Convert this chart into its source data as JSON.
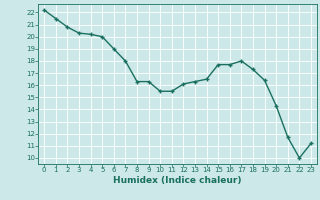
{
  "x": [
    0,
    1,
    2,
    3,
    4,
    5,
    6,
    7,
    8,
    9,
    10,
    11,
    12,
    13,
    14,
    15,
    16,
    17,
    18,
    19,
    20,
    21,
    22,
    23
  ],
  "y": [
    22.2,
    21.5,
    20.8,
    20.3,
    20.2,
    20.0,
    19.0,
    18.0,
    16.3,
    16.3,
    15.5,
    15.5,
    16.1,
    16.3,
    16.5,
    17.7,
    17.7,
    18.0,
    17.3,
    16.4,
    14.3,
    11.7,
    10.0,
    11.2
  ],
  "line_color": "#1a7060",
  "marker": "+",
  "marker_size": 3,
  "linewidth": 1.0,
  "xlabel": "Humidex (Indice chaleur)",
  "xlim": [
    -0.5,
    23.5
  ],
  "ylim": [
    9.5,
    22.7
  ],
  "yticks": [
    10,
    11,
    12,
    13,
    14,
    15,
    16,
    17,
    18,
    19,
    20,
    21,
    22
  ],
  "xticks": [
    0,
    1,
    2,
    3,
    4,
    5,
    6,
    7,
    8,
    9,
    10,
    11,
    12,
    13,
    14,
    15,
    16,
    17,
    18,
    19,
    20,
    21,
    22,
    23
  ],
  "bg_color": "#cce8e8",
  "grid_color": "#b0d8d8",
  "tick_color": "#1a7060",
  "label_color": "#1a7060",
  "xlabel_fontsize": 6.5,
  "tick_fontsize": 5.0
}
